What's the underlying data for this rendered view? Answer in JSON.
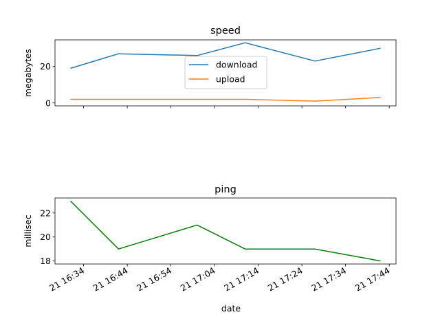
{
  "chart_data": [
    {
      "type": "line",
      "title": "speed",
      "xlabel": "",
      "ylabel": "megabytes",
      "x": [
        "21 16:31",
        "21 16:42",
        "21 17:00",
        "21 17:11",
        "21 17:27",
        "21 17:42"
      ],
      "series": [
        {
          "name": "download",
          "color": "#1f77b4",
          "values": [
            19,
            27,
            26,
            33,
            23,
            30
          ]
        },
        {
          "name": "upload",
          "color": "#ff7f0e",
          "values": [
            2,
            2,
            2,
            2,
            1,
            3
          ]
        }
      ],
      "ylim": [
        -1.6,
        34.6
      ],
      "yticks": [
        0,
        20
      ],
      "xticks_shown": false,
      "legend": "center",
      "grid": false
    },
    {
      "type": "line",
      "title": "ping",
      "xlabel": "date",
      "ylabel": "millisec",
      "x": [
        "21 16:31",
        "21 16:42",
        "21 17:00",
        "21 17:11",
        "21 17:27",
        "21 17:42"
      ],
      "series": [
        {
          "color": "#008000",
          "values": [
            23,
            19,
            21,
            19,
            19,
            18
          ]
        }
      ],
      "ylim": [
        17.75,
        23.25
      ],
      "yticks": [
        18,
        20,
        22
      ],
      "xticks": [
        "21 16:34",
        "21 16:44",
        "21 16:54",
        "21 17:04",
        "21 17:14",
        "21 17:24",
        "21 17:34",
        "21 17:44"
      ],
      "grid": false
    }
  ]
}
